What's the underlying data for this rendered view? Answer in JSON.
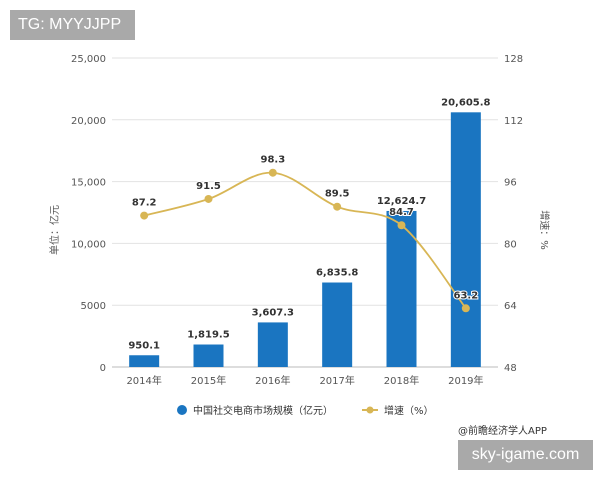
{
  "header_tag": "TG: MYYJJPP",
  "footer_tag": "sky-igame.com",
  "source": "@前瞻经济学人APP",
  "chart_data": {
    "type": "bar+line",
    "categories": [
      "2014年",
      "2015年",
      "2016年",
      "2017年",
      "2018年",
      "2019年"
    ],
    "series": [
      {
        "name": "中国社交电商市场规模（亿元）",
        "type": "bar",
        "axis": "left",
        "values": [
          950.1,
          1819.5,
          3607.3,
          6835.8,
          12624.7,
          20605.8
        ],
        "labels": [
          "950.1",
          "1,819.5",
          "3,607.3",
          "6,835.8",
          "12,624.7",
          "20,605.8"
        ],
        "color": "#1a75c1"
      },
      {
        "name": "增速（%）",
        "type": "line",
        "axis": "right",
        "values": [
          87.2,
          91.5,
          98.3,
          89.5,
          84.7,
          63.2
        ],
        "labels": [
          "87.2",
          "91.5",
          "98.3",
          "89.5",
          "84.7",
          "63.2"
        ],
        "color": "#d8b655"
      }
    ],
    "ylabel": "单位：亿元",
    "y2label": "增速：%",
    "ylim": [
      0,
      25000
    ],
    "y2lim": [
      48,
      128
    ],
    "yticks": [
      "0",
      "5000",
      "10,000",
      "15,000",
      "20,000",
      "25,000"
    ],
    "y2ticks": [
      "48",
      "64",
      "80",
      "96",
      "112",
      "128"
    ],
    "grid": true,
    "legend": "bottom"
  }
}
